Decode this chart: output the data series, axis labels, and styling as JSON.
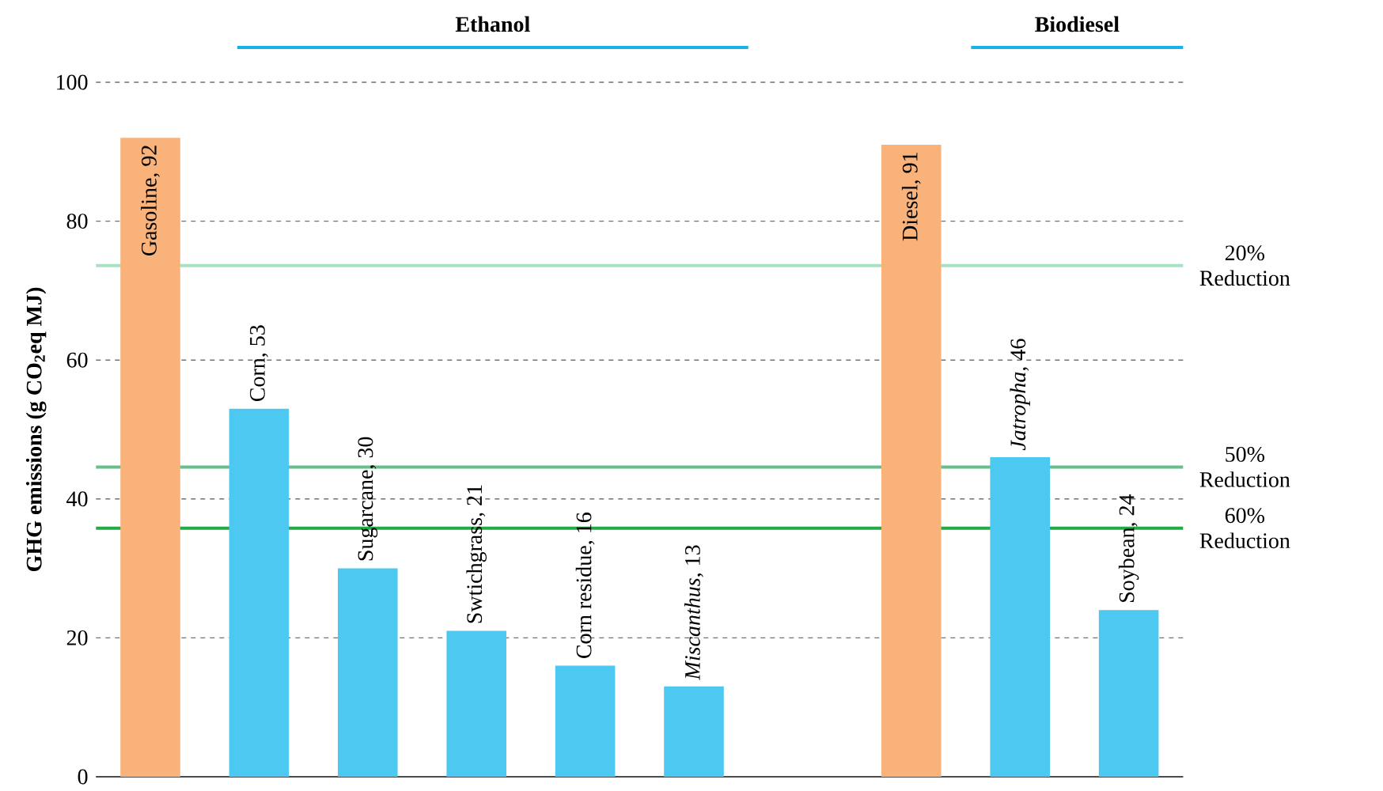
{
  "chart_data": {
    "type": "bar",
    "ylabel": "GHG emissions (g CO$_{2}$eq MJ)",
    "categories": [
      null,
      null,
      null,
      null,
      null,
      null,
      null,
      null,
      null,
      null
    ],
    "values": [
      92,
      53,
      30,
      21,
      16,
      13,
      null,
      91,
      46,
      24
    ],
    "colors": [
      "#f8b27a",
      "#4dc8f0",
      "#4dc8f0",
      "#4dc8f0",
      "#4dc8f0",
      "#4dc8f0",
      "#4dc8f0",
      "#f8b27a",
      "#4dc8f0",
      "#4dc8f0"
    ],
    "value_labels": [
      "Gasoline, 92",
      "Corn, 53",
      "Sugarcane, 30",
      "Swtichgrass, 21",
      "Corn residue, 16",
      "*Miscanthus*, 13",
      null,
      "Diesel, 91",
      "*Jatropha*, 46",
      "Soybean, 24"
    ],
    "ylim": [
      0,
      100
    ],
    "yticks": [
      0,
      20,
      40,
      60,
      80,
      100
    ],
    "grid": "y",
    "tick_labels": "y",
    "ref_lines": [
      {
        "axis": "y",
        "value": 73.6,
        "label": "20% Reduction",
        "color": "#a6e3c0"
      },
      {
        "axis": "y",
        "value": 44.6,
        "label": "50% Reduction",
        "color": "#66c08a"
      },
      {
        "axis": "y",
        "value": 35.8,
        "label": "60% Reduction",
        "color": "#22aa44"
      }
    ],
    "annotations": [
      "Ethanol",
      "Biodiesel"
    ]
  }
}
